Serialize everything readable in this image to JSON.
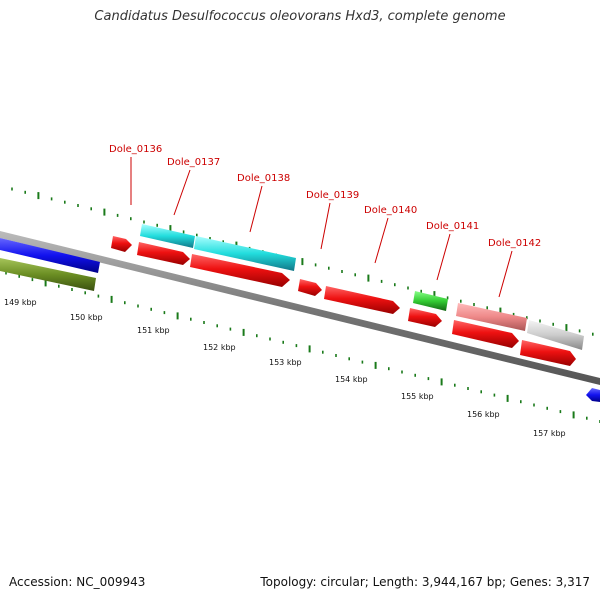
{
  "header": {
    "title": "Candidatus Desulfococcus oleovorans Hxd3, complete genome"
  },
  "footer": {
    "accession": "Accession: NC_009943",
    "summary": "Topology: circular; Length: 3,944,167 bp; Genes: 3,317"
  },
  "colors": {
    "backbone": "#888888",
    "label": "#cc0000",
    "tick": "#1a7a1a",
    "cds_forward": "#ee1111",
    "rna": "#22ddee",
    "green_gene": "#33cc33",
    "blue_gene": "#1111ee",
    "olive_gene": "#6b8e23",
    "pink_gene": "#ee8888",
    "grey_gene": "#cccccc"
  },
  "scale": {
    "labels": [
      "149 kbp",
      "150 kbp",
      "151 kbp",
      "152 kbp",
      "153 kbp",
      "154 kbp",
      "155 kbp",
      "156 kbp",
      "157 kbp"
    ]
  },
  "genes": {
    "labels": [
      "Dole_0136",
      "Dole_0137",
      "Dole_0138",
      "Dole_0139",
      "Dole_0140",
      "Dole_0141",
      "Dole_0142"
    ]
  }
}
